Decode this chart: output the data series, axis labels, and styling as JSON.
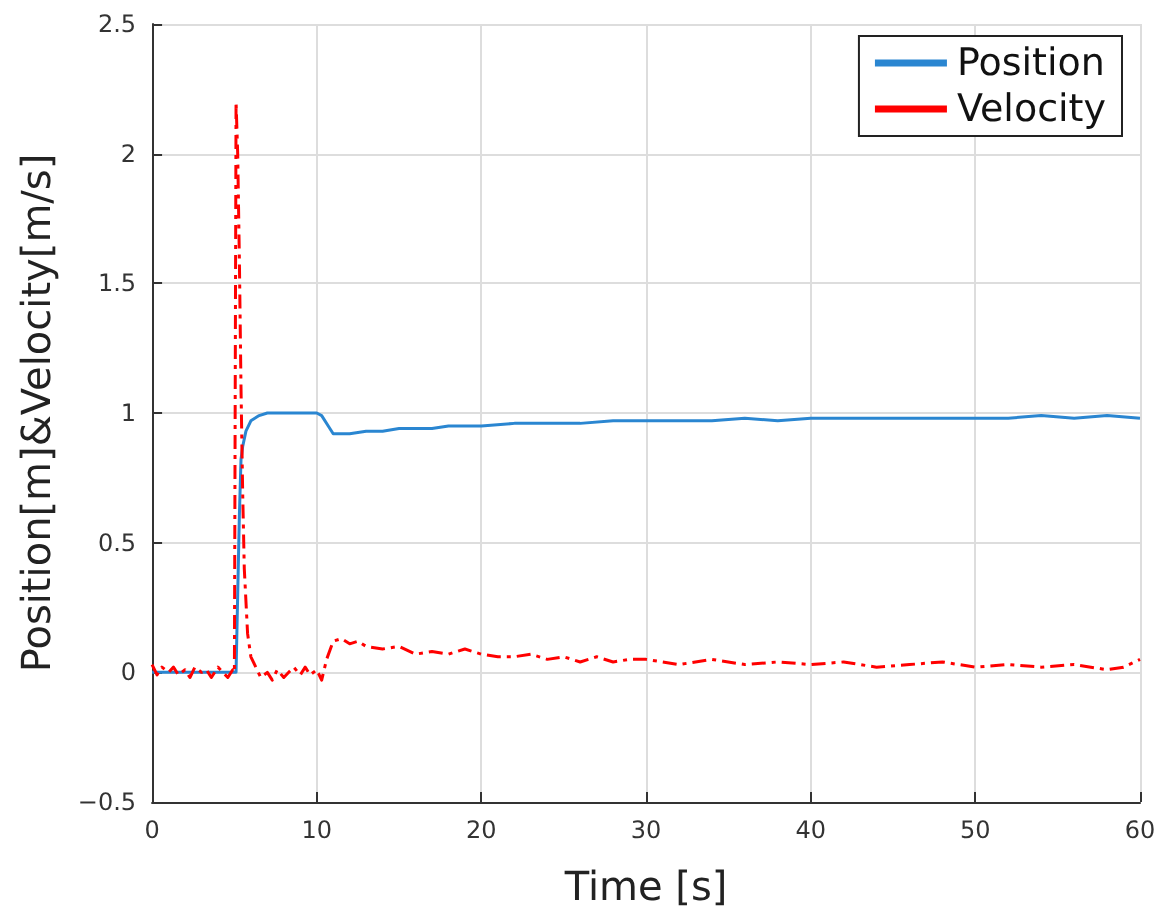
{
  "chart_data": {
    "type": "line",
    "xlabel": "Time [s]",
    "ylabel": "Position[m]&Velocity[m/s]",
    "xlim": [
      0,
      60
    ],
    "xticks": [
      0,
      10,
      20,
      30,
      40,
      50,
      60
    ],
    "ylim": [
      -0.5,
      2.5
    ],
    "yticks": [
      -0.5,
      0,
      0.5,
      1,
      1.5,
      2,
      2.5
    ],
    "grid": true,
    "legend": "top right",
    "series": [
      {
        "name": "Position",
        "color": "#2a86d1",
        "line_style": "solid",
        "x": [
          0,
          1,
          2,
          3,
          4,
          5,
          5.1,
          5.2,
          5.3,
          5.4,
          5.5,
          5.7,
          6,
          6.5,
          7,
          8,
          9,
          10,
          10.3,
          10.7,
          11,
          11.5,
          12,
          13,
          14,
          15,
          16,
          17,
          18,
          19,
          20,
          22,
          24,
          26,
          28,
          30,
          32,
          34,
          36,
          38,
          40,
          42,
          44,
          46,
          48,
          50,
          52,
          54,
          56,
          58,
          60
        ],
        "values": [
          0,
          0,
          0,
          0,
          0,
          0,
          0,
          0.3,
          0.6,
          0.82,
          0.87,
          0.93,
          0.97,
          0.99,
          1,
          1,
          1,
          1,
          0.99,
          0.95,
          0.92,
          0.92,
          0.92,
          0.93,
          0.93,
          0.94,
          0.94,
          0.94,
          0.95,
          0.95,
          0.95,
          0.96,
          0.96,
          0.96,
          0.97,
          0.97,
          0.97,
          0.97,
          0.98,
          0.97,
          0.98,
          0.98,
          0.98,
          0.98,
          0.98,
          0.98,
          0.98,
          0.99,
          0.98,
          0.99,
          0.98
        ]
      },
      {
        "name": "Velocity",
        "color": "#ff0000",
        "line_style": "dashed",
        "x": [
          0,
          0.3,
          0.6,
          1,
          1.3,
          1.6,
          2,
          2.3,
          2.6,
          3,
          3.3,
          3.6,
          4,
          4.3,
          4.6,
          4.9,
          5,
          5.1,
          5.2,
          5.3,
          5.4,
          5.5,
          5.6,
          5.8,
          6,
          6.3,
          6.6,
          7,
          7.3,
          7.6,
          8,
          8.3,
          8.6,
          9,
          9.3,
          9.6,
          10,
          10.3,
          10.6,
          11,
          11.5,
          12,
          12.5,
          13,
          14,
          15,
          16,
          17,
          18,
          19,
          20,
          21,
          22,
          23,
          24,
          25,
          26,
          27,
          28,
          29,
          30,
          32,
          34,
          36,
          38,
          40,
          42,
          44,
          46,
          48,
          50,
          52,
          54,
          56,
          58,
          59,
          60
        ],
        "values": [
          0.03,
          -0.01,
          0.02,
          0,
          0.02,
          -0.01,
          0.01,
          -0.02,
          0.02,
          0,
          0.01,
          -0.02,
          0.02,
          0,
          -0.02,
          0.01,
          0,
          2.2,
          2.0,
          1.6,
          1.1,
          0.7,
          0.4,
          0.15,
          0.06,
          0.02,
          -0.02,
          0,
          -0.03,
          0.01,
          -0.02,
          0,
          0.02,
          -0.01,
          0.02,
          -0.01,
          0.01,
          -0.03,
          0.05,
          0.12,
          0.13,
          0.11,
          0.12,
          0.1,
          0.09,
          0.1,
          0.07,
          0.08,
          0.07,
          0.09,
          0.07,
          0.06,
          0.06,
          0.07,
          0.05,
          0.06,
          0.04,
          0.06,
          0.04,
          0.05,
          0.05,
          0.03,
          0.05,
          0.03,
          0.04,
          0.03,
          0.04,
          0.02,
          0.03,
          0.04,
          0.02,
          0.03,
          0.02,
          0.03,
          0.01,
          0.02,
          0.05
        ]
      }
    ]
  }
}
